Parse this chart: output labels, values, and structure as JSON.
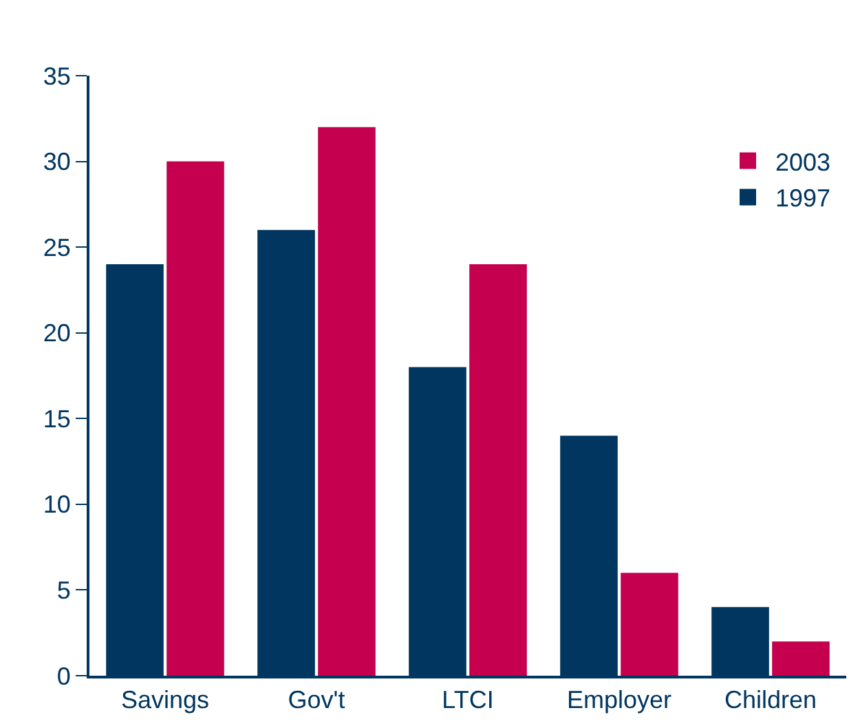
{
  "chart_data": {
    "type": "bar",
    "categories": [
      "Savings",
      "Gov't",
      "LTCI",
      "Employer",
      "Children"
    ],
    "series": [
      {
        "name": "1997",
        "color": "#003660",
        "values": [
          24,
          26,
          18,
          14,
          4
        ]
      },
      {
        "name": "2003",
        "color": "#c4004f",
        "values": [
          30,
          32,
          24,
          6,
          2
        ]
      }
    ],
    "ylim": [
      0,
      35
    ],
    "yticks": [
      0,
      5,
      10,
      15,
      20,
      25,
      30,
      35
    ],
    "legend": "top right"
  }
}
